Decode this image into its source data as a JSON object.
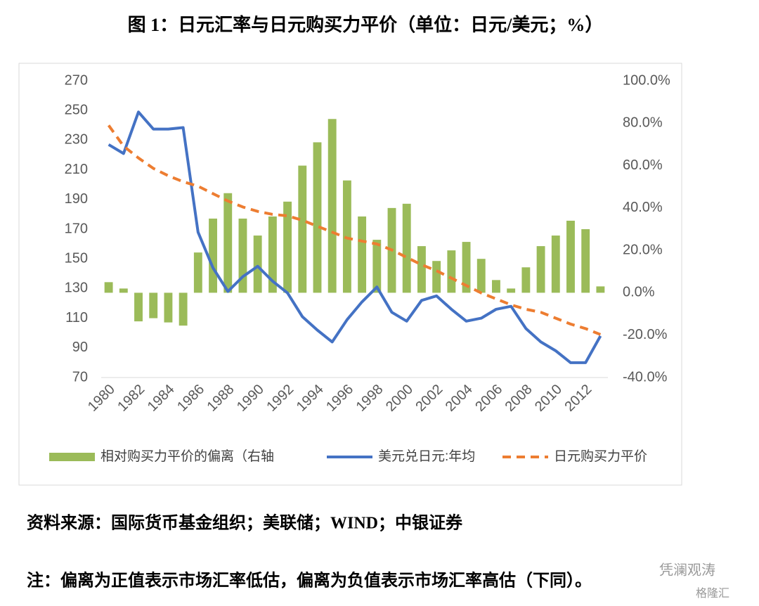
{
  "chart_data": {
    "type": "combo",
    "title": "图 1：日元汇率与日元购买力平价（单位：日元/美元；%）",
    "categories": [
      "1980",
      null,
      "1982",
      null,
      "1984",
      null,
      "1986",
      null,
      "1988",
      null,
      "1990",
      null,
      "1992",
      null,
      "1994",
      null,
      "1996",
      null,
      "1998",
      null,
      "2000",
      null,
      "2002",
      null,
      "2004",
      null,
      "2006",
      null,
      "2008",
      null,
      "2010",
      null,
      "2012",
      null
    ],
    "series": [
      {
        "name": "相对购买力平价的偏离（右轴",
        "type": "bar",
        "axis": "y2",
        "color": "#9bbb59",
        "values": [
          5,
          2,
          -13.5,
          -12,
          -14,
          -15.5,
          19,
          35,
          47,
          35,
          27,
          36,
          43,
          60,
          71,
          82,
          53,
          36,
          25,
          40,
          42,
          22,
          15,
          20,
          24,
          16,
          6,
          2,
          12,
          22,
          27,
          34,
          30,
          3
        ]
      },
      {
        "name": "美元兑日元:年均",
        "type": "line",
        "color": "#4472c4",
        "values": [
          227,
          221,
          249,
          237.5,
          237.5,
          238.5,
          168,
          144,
          128,
          138,
          145,
          135,
          127,
          111,
          102,
          94,
          109,
          121,
          131,
          114,
          108,
          122,
          125,
          116,
          108,
          110,
          116,
          118,
          103,
          94,
          88,
          80,
          80,
          98
        ]
      },
      {
        "name": "日元购买力平价",
        "type": "dashed-line",
        "color": "#ed7d31",
        "values": [
          240,
          226,
          218,
          211,
          206,
          202,
          199,
          194,
          189,
          185,
          182,
          180,
          179,
          176,
          172,
          168,
          164,
          162,
          160,
          156,
          151,
          146,
          142,
          137,
          132,
          127,
          123,
          119,
          116,
          114,
          110,
          106,
          103,
          99
        ]
      }
    ],
    "ylim": [
      70,
      270
    ],
    "yticks": [
      70,
      90,
      110,
      130,
      150,
      170,
      190,
      210,
      230,
      250,
      270
    ],
    "y2lim": [
      -40,
      100
    ],
    "y2ticks": [
      {
        "value": -40,
        "label": "-40.0%"
      },
      {
        "value": -20,
        "label": "-20.0%"
      },
      {
        "value": 0,
        "label": "0.0%"
      },
      {
        "value": 20,
        "label": "20.0%"
      },
      {
        "value": 40,
        "label": "40.0%"
      },
      {
        "value": 60,
        "label": "60.0%"
      },
      {
        "value": 80,
        "label": "80.0%"
      },
      {
        "value": 100,
        "label": "100.0%"
      }
    ],
    "grid": false,
    "legend": "bottom"
  },
  "source": "资料来源：国际货币基金组织；美联储；WIND；中银证券",
  "note": "注：偏离为正值表示市场汇率低估，偏离为负值表示市场汇率高估（下同）。",
  "watermark": [
    "凭澜观涛",
    "格隆汇"
  ]
}
